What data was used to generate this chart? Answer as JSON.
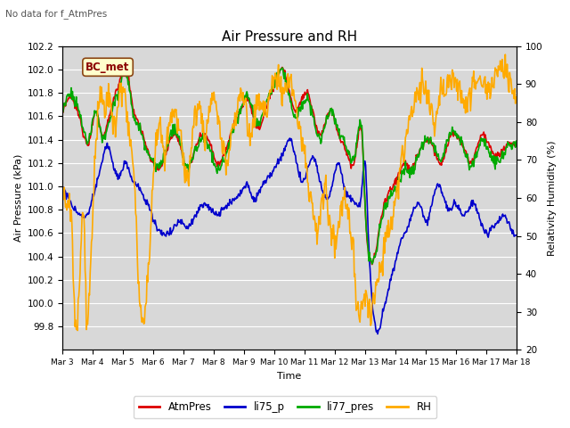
{
  "title": "Air Pressure and RH",
  "subtitle": "No data for f_AtmPres",
  "xlabel": "Time",
  "ylabel_left": "Air Pressure (kPa)",
  "ylabel_right": "Relativity Humidity (%)",
  "legend_label": "BC_met",
  "ylim_left": [
    99.6,
    102.2
  ],
  "ylim_right": [
    20,
    100
  ],
  "yticks_left": [
    99.8,
    100.0,
    100.2,
    100.4,
    100.6,
    100.8,
    101.0,
    101.2,
    101.4,
    101.6,
    101.8,
    102.0,
    102.2
  ],
  "yticks_right": [
    20,
    30,
    40,
    50,
    60,
    70,
    80,
    90,
    100
  ],
  "xtick_labels": [
    "Mar 3",
    "Mar 4",
    "Mar 5",
    "Mar 6",
    "Mar 7",
    "Mar 8",
    "Mar 9",
    "Mar 10",
    "Mar 11",
    "Mar 12",
    "Mar 13",
    "Mar 14",
    "Mar 15",
    "Mar 16",
    "Mar 17",
    "Mar 18"
  ],
  "colors": {
    "AtmPres": "#dd0000",
    "li75_p": "#0000cc",
    "li77_pres": "#00aa00",
    "RH": "#ffaa00",
    "background": "#d8d8d8",
    "grid": "#ffffff"
  },
  "linewidth": 1.2,
  "legend_entries": [
    "AtmPres",
    "li75_p",
    "li77_pres",
    "RH"
  ]
}
